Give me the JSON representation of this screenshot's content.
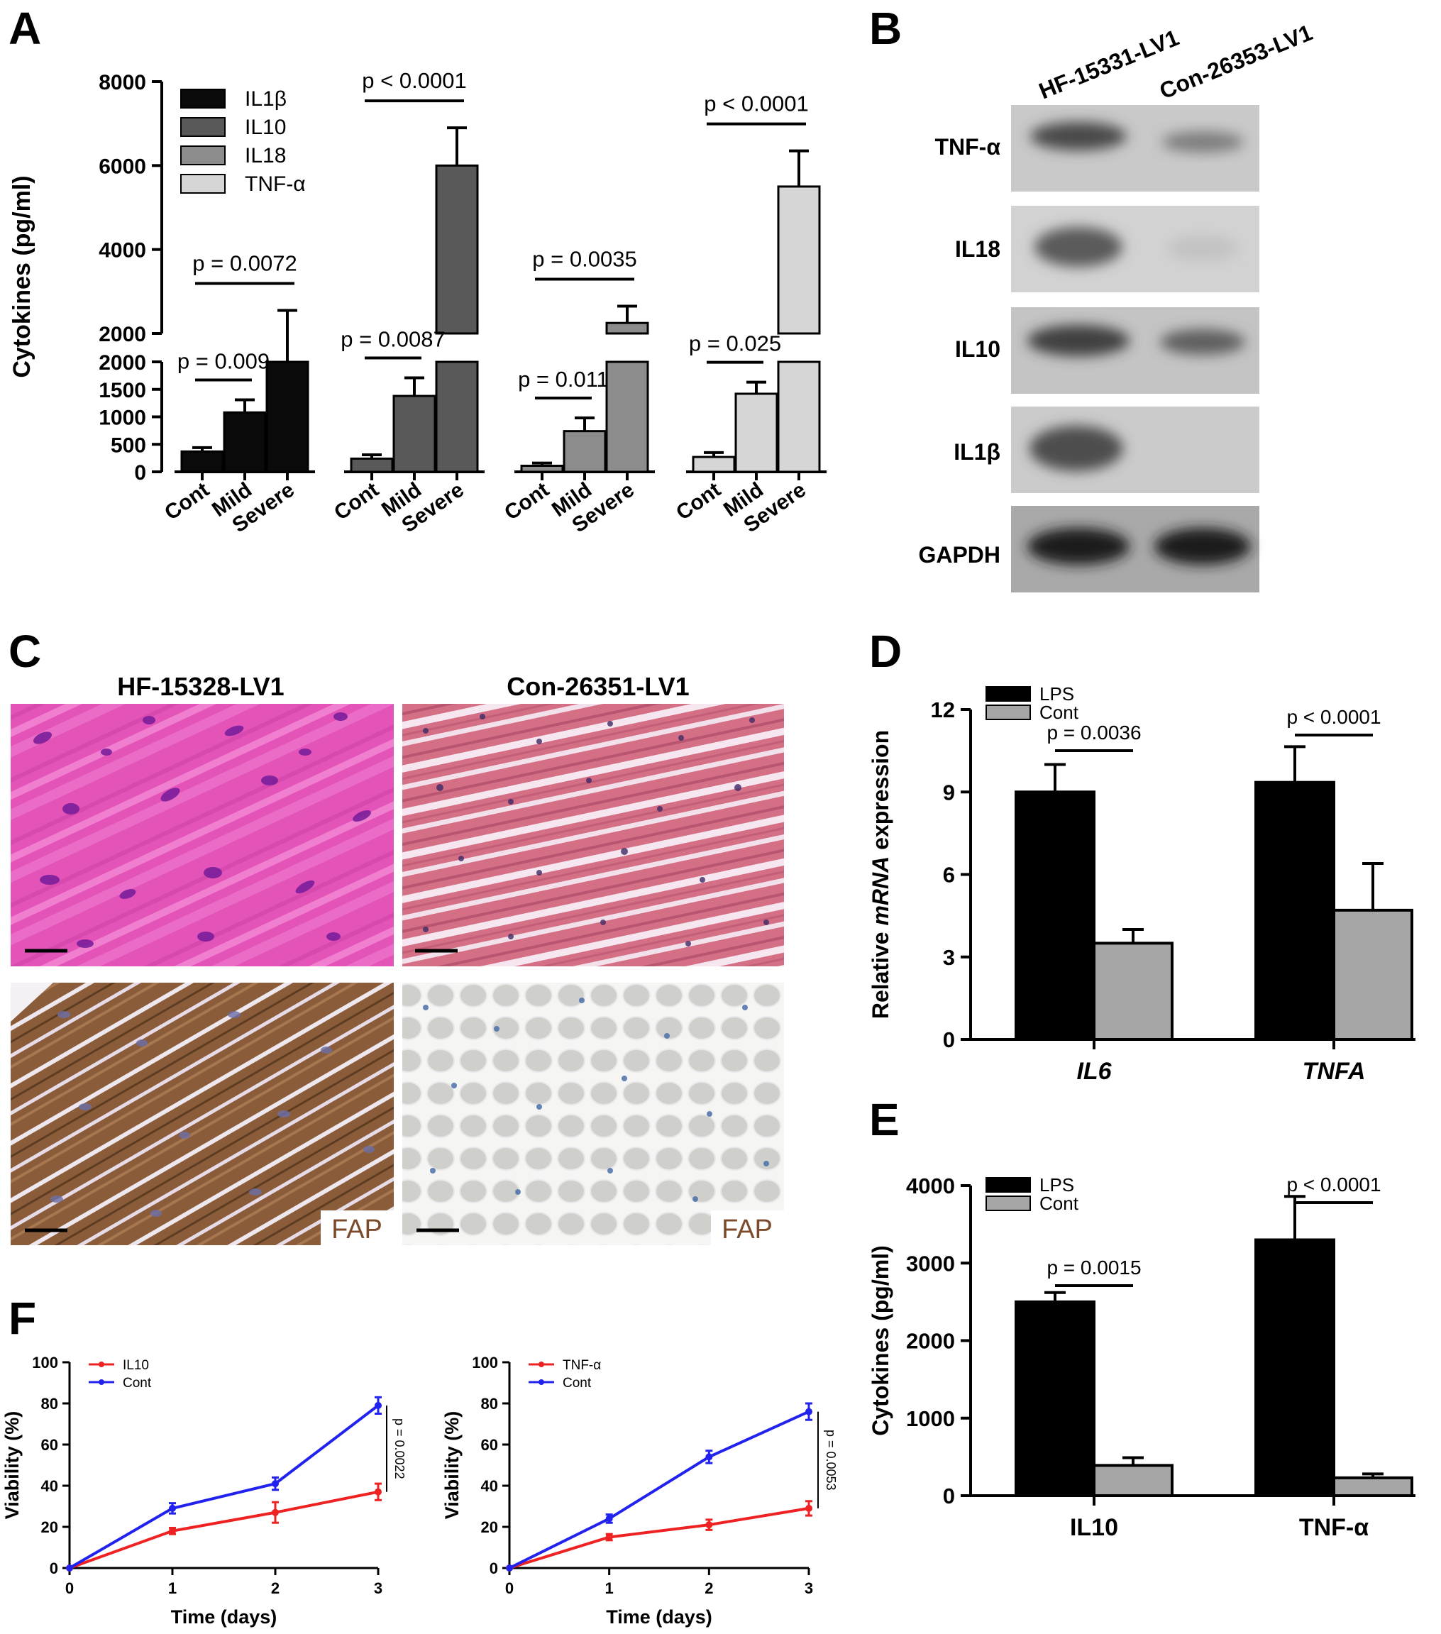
{
  "figure": {
    "panel_labels": [
      "A",
      "B",
      "C",
      "D",
      "E",
      "F"
    ]
  },
  "colors": {
    "IL1b": "#0a0a0a",
    "IL10": "#595959",
    "IL18": "#8c8c8c",
    "TNFa": "#d6d6d6",
    "LPS": "#000000",
    "Cont_bar": "#a6a6a6",
    "red_series": "#ee2222",
    "blue_series": "#2222ee"
  },
  "chart_data": [
    {
      "panel": "A",
      "type": "bar",
      "ylabel": "Cytokines (pg/ml)",
      "axis_break": true,
      "upper_yticks": [
        "8000",
        "6000",
        "4000",
        "2000"
      ],
      "lower_yticks": [
        "2000",
        "1500",
        "1000",
        "500",
        "0"
      ],
      "ylim_lower": [
        0,
        2000
      ],
      "ylim_upper": [
        2000,
        8000
      ],
      "legend": [
        "IL1β",
        "IL10",
        "IL18",
        "TNF-α"
      ],
      "categories": [
        "Cont",
        "Mild",
        "Severe"
      ],
      "series": [
        {
          "name": "IL1β",
          "values": [
            370,
            1080,
            2000
          ],
          "errors": [
            70,
            230,
            550
          ],
          "comparisons": [
            {
              "label": "p = 0.009",
              "from": 0,
              "to": 1
            },
            {
              "label": "p = 0.0072",
              "from": 0,
              "to": 2
            }
          ]
        },
        {
          "name": "IL10",
          "values": [
            240,
            1380,
            6000
          ],
          "errors": [
            70,
            330,
            900
          ],
          "comparisons": [
            {
              "label": "p = 0.0087",
              "from": 0,
              "to": 1
            },
            {
              "label": "p < 0.0001",
              "from": 0,
              "to": 2
            }
          ]
        },
        {
          "name": "IL18",
          "values": [
            110,
            740,
            2250
          ],
          "errors": [
            50,
            240,
            400
          ],
          "comparisons": [
            {
              "label": "p = 0.011",
              "from": 0,
              "to": 1
            },
            {
              "label": "p = 0.0035",
              "from": 0,
              "to": 2
            }
          ]
        },
        {
          "name": "TNF-α",
          "values": [
            270,
            1420,
            5500
          ],
          "errors": [
            80,
            210,
            850
          ],
          "comparisons": [
            {
              "label": "p = 0.025",
              "from": 0,
              "to": 1
            },
            {
              "label": "p < 0.0001",
              "from": 0,
              "to": 2
            }
          ]
        }
      ]
    },
    {
      "panel": "D",
      "type": "bar",
      "ylabel_parts": [
        "Relative ",
        "mRNA",
        " expression"
      ],
      "yticks": [
        "0",
        "3",
        "6",
        "9",
        "12"
      ],
      "ylim": [
        0,
        12
      ],
      "categories": [
        "IL6",
        "TNFA"
      ],
      "series": [
        {
          "name": "LPS",
          "values": [
            9.0,
            9.35
          ],
          "errors": [
            1.0,
            1.3
          ]
        },
        {
          "name": "Cont",
          "values": [
            3.5,
            4.7
          ],
          "errors": [
            0.5,
            1.7
          ]
        }
      ],
      "comparisons": [
        "p = 0.0036",
        "p < 0.0001"
      ]
    },
    {
      "panel": "E",
      "type": "bar",
      "ylabel": "Cytokines (pg/ml)",
      "yticks": [
        "0",
        "1000",
        "2000",
        "3000",
        "4000"
      ],
      "ylim": [
        0,
        4000
      ],
      "categories": [
        "IL10",
        "TNF-α"
      ],
      "series": [
        {
          "name": "LPS",
          "values": [
            2500,
            3300
          ],
          "errors": [
            120,
            560
          ]
        },
        {
          "name": "Cont",
          "values": [
            390,
            230
          ],
          "errors": [
            100,
            50
          ]
        }
      ],
      "comparisons": [
        "p = 0.0015",
        "p < 0.0001"
      ]
    },
    {
      "panel": "F1",
      "type": "line",
      "xlabel": "Time (days)",
      "ylabel": "Viability (%)",
      "x": [
        0,
        1,
        2,
        3
      ],
      "xticks": [
        "0",
        "1",
        "2",
        "3"
      ],
      "yticks": [
        "0",
        "20",
        "40",
        "60",
        "80",
        "100"
      ],
      "ylim": [
        0,
        100
      ],
      "series": [
        {
          "name": "IL10",
          "values": [
            0,
            18,
            27,
            37
          ],
          "errors": [
            0,
            1.5,
            5,
            4
          ],
          "color": "#ee2222"
        },
        {
          "name": "Cont",
          "values": [
            0,
            29,
            41,
            79
          ],
          "errors": [
            0,
            2.5,
            3,
            4
          ],
          "color": "#2222ee"
        }
      ],
      "annotation": "p = 0.0022"
    },
    {
      "panel": "F2",
      "type": "line",
      "xlabel": "Time (days)",
      "ylabel": "Viability (%)",
      "x": [
        0,
        1,
        2,
        3
      ],
      "xticks": [
        "0",
        "1",
        "2",
        "3"
      ],
      "yticks": [
        "0",
        "20",
        "40",
        "60",
        "80",
        "100"
      ],
      "ylim": [
        0,
        100
      ],
      "series": [
        {
          "name": "TNF-α",
          "values": [
            0,
            15,
            21,
            29
          ],
          "errors": [
            0,
            1.5,
            2.5,
            3.5
          ],
          "color": "#ee2222"
        },
        {
          "name": "Cont",
          "values": [
            0,
            24,
            54,
            76
          ],
          "errors": [
            0,
            2,
            3,
            4
          ],
          "color": "#2222ee"
        }
      ],
      "annotation": "p = 0.0053"
    }
  ],
  "western_blot": {
    "lanes": [
      "HF-15331-LV1",
      "Con-26353-LV1"
    ],
    "rows": [
      "TNF-α",
      "IL18",
      "IL10",
      "IL1β",
      "GAPDH"
    ]
  },
  "histology": {
    "columns": [
      "HF-15328-LV1",
      "Con-26351-LV1"
    ],
    "stain_label": "FAP"
  }
}
